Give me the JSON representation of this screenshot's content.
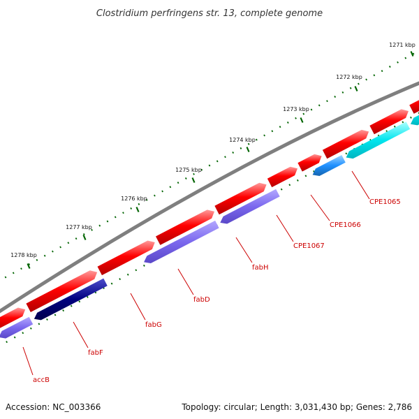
{
  "title": "Clostridium perfringens str. 13, complete genome",
  "footer": {
    "accession": "Accession: NC_003366",
    "summary": "Topology: circular; Length: 3,031,430 bp; Genes: 2,786"
  },
  "kbp_labels": [
    "1271 kbp",
    "1272 kbp",
    "1273 kbp",
    "1274 kbp",
    "1275 kbp",
    "1276 kbp",
    "1277 kbp",
    "1278 kbp"
  ],
  "genes": [
    "CPE1065",
    "CPE1066",
    "CPE1067",
    "fabH",
    "fabD",
    "fabG",
    "fabF",
    "accB"
  ],
  "colors": {
    "backbone": "#808080",
    "forward_cds": "#ff0000",
    "track_purple": "#7b68ee",
    "track_navy": "#000080",
    "track_cyan": "#00e5ee",
    "track_lightblue": "#1e90ff",
    "tick": "#006400",
    "label": "#cc0000"
  }
}
